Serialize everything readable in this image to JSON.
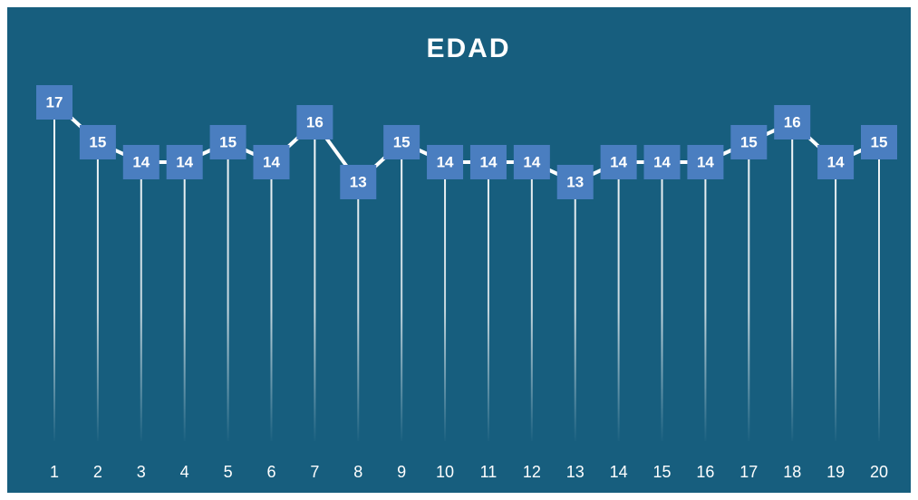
{
  "chart_data": {
    "type": "line",
    "title": "EDAD",
    "categories": [
      "1",
      "2",
      "3",
      "4",
      "5",
      "6",
      "7",
      "8",
      "9",
      "10",
      "11",
      "12",
      "13",
      "14",
      "15",
      "16",
      "17",
      "18",
      "19",
      "20"
    ],
    "values": [
      17,
      15,
      14,
      14,
      15,
      14,
      16,
      13,
      15,
      14,
      14,
      14,
      13,
      14,
      14,
      14,
      15,
      16,
      14,
      15
    ],
    "color": "#ffffff",
    "marker_color": "#4a7ec0",
    "background": "#175e7e",
    "ylim": [
      0,
      17
    ]
  }
}
